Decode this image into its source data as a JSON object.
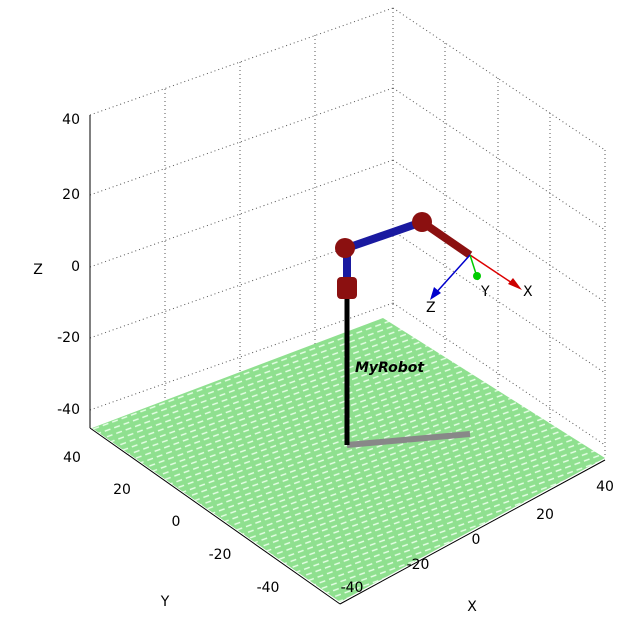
{
  "axes": {
    "x": {
      "label": "X",
      "ticks": [
        "-40",
        "-20",
        "0",
        "20",
        "40"
      ]
    },
    "y": {
      "label": "Y",
      "ticks": [
        "40",
        "20",
        "0",
        "-20",
        "-40"
      ]
    },
    "z": {
      "label": "Z",
      "ticks": [
        "40",
        "20",
        "0",
        "-20",
        "-40"
      ]
    }
  },
  "robot": {
    "name": "MyRobot"
  },
  "frame": {
    "x": "X",
    "y": "Y",
    "z": "Z"
  }
}
